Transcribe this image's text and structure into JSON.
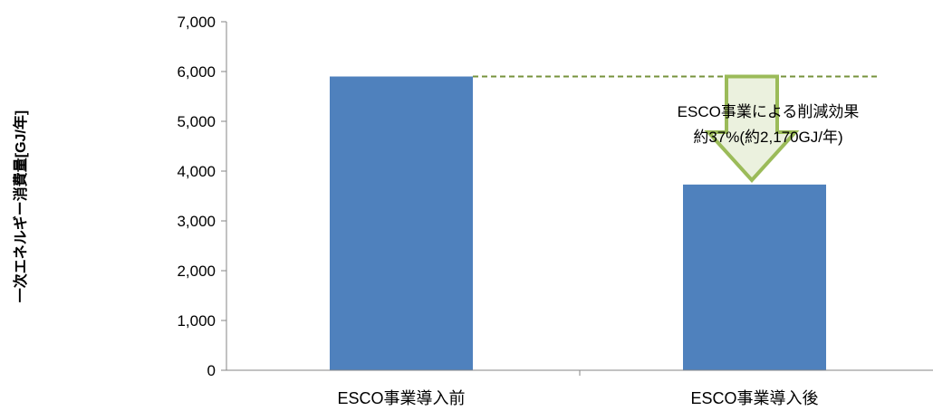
{
  "chart_data": {
    "type": "bar",
    "title": "",
    "xlabel": "",
    "ylabel": "一次エネルギー消費量[GJ/年]",
    "categories": [
      "ESCO事業導入前",
      "ESCO事業導入後"
    ],
    "values": [
      5900,
      3730
    ],
    "ylim": [
      0,
      7000
    ],
    "yticks": [
      0,
      1000,
      2000,
      3000,
      4000,
      5000,
      6000,
      7000
    ],
    "ytick_labels": [
      "0",
      "1,000",
      "2,000",
      "3,000",
      "4,000",
      "5,000",
      "6,000",
      "7,000"
    ],
    "grid": false,
    "legend": "none",
    "bar_color": "#4f81bd",
    "annotation": {
      "lines": [
        "ESCO事業による削減効果",
        "約37%(約2,170GJ/年)"
      ],
      "reference_value": 5900,
      "arrow_fill": "#ebf1de",
      "arrow_stroke": "#9bbb59",
      "dash_color": "#77933c"
    }
  }
}
